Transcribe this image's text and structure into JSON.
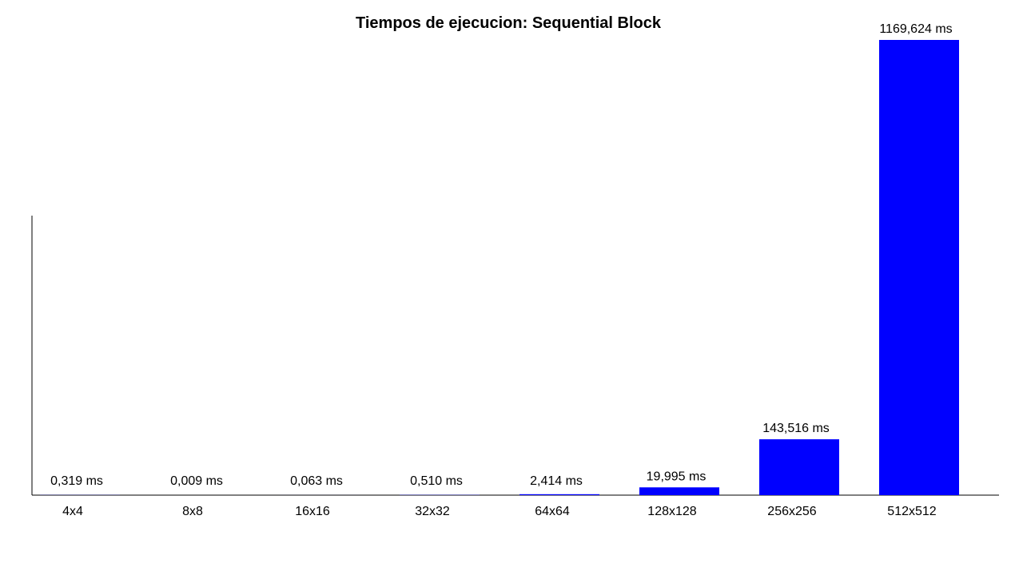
{
  "chart_data": {
    "type": "bar",
    "title": "Tiempos de ejecucion: Sequential Block",
    "xlabel": "",
    "ylabel": "",
    "categories": [
      "4x4",
      "8x8",
      "16x16",
      "32x32",
      "64x64",
      "128x128",
      "256x256",
      "512x512"
    ],
    "values": [
      0.319,
      0.009,
      0.063,
      0.51,
      2.414,
      19.995,
      143.516,
      1169.624
    ],
    "value_labels": [
      "0,319 ms",
      "0,009 ms",
      "0,063 ms",
      "0,510 ms",
      "2,414 ms",
      "19,995 ms",
      "143,516 ms",
      "1169,624 ms"
    ],
    "ylim": [
      0,
      1200
    ],
    "grid": false,
    "legend": "none",
    "colors": {
      "bar": "#0000ff",
      "axis": "#000000",
      "text": "#000000",
      "background": "#ffffff"
    }
  }
}
